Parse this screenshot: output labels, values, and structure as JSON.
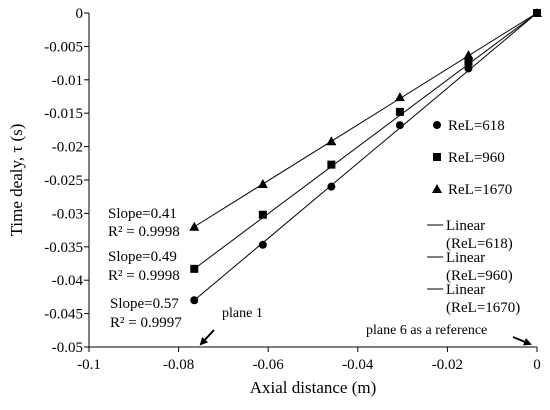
{
  "chart_data": {
    "type": "scatter",
    "xlabel": "Axial distance (m)",
    "ylabel": "Time dealy, τ (s)",
    "xlim": [
      -0.1,
      0
    ],
    "ylim": [
      -0.05,
      0
    ],
    "x_ticks": [
      "-0.1",
      "-0.08",
      "-0.06",
      "-0.04",
      "-0.02",
      "0"
    ],
    "y_ticks": [
      "0",
      "-0.005",
      "-0.01",
      "-0.015",
      "-0.02",
      "-0.025",
      "-0.03",
      "-0.035",
      "-0.04",
      "-0.045",
      "-0.05"
    ],
    "x_tick_values": [
      -0.1,
      -0.08,
      -0.06,
      -0.04,
      -0.02,
      0
    ],
    "y_tick_values": [
      0,
      -0.005,
      -0.01,
      -0.015,
      -0.02,
      -0.025,
      -0.03,
      -0.035,
      -0.04,
      -0.045,
      -0.05
    ],
    "grid": false,
    "legend_position": "right",
    "series": [
      {
        "name": "ReL=618",
        "marker": "circle",
        "x": [
          -0.0765,
          -0.0612,
          -0.0459,
          -0.0306,
          -0.0153,
          0
        ],
        "y": [
          -0.043,
          -0.0347,
          -0.026,
          -0.0168,
          -0.0083,
          0
        ],
        "fit_label": "Linear (ReL=618)",
        "slope_text": "Slope=0.57",
        "r2_text": "R² = 0.9997"
      },
      {
        "name": "ReL=960",
        "marker": "square",
        "x": [
          -0.0765,
          -0.0612,
          -0.0459,
          -0.0306,
          -0.0153,
          0
        ],
        "y": [
          -0.0383,
          -0.0302,
          -0.0227,
          -0.0148,
          -0.0073,
          0
        ],
        "fit_label": "Linear (ReL=960)",
        "slope_text": "Slope=0.49",
        "r2_text": "R² = 0.9998"
      },
      {
        "name": "ReL=1670",
        "marker": "triangle",
        "x": [
          -0.0765,
          -0.0612,
          -0.0459,
          -0.0306,
          -0.0153,
          0
        ],
        "y": [
          -0.032,
          -0.0256,
          -0.0192,
          -0.0126,
          -0.0063,
          0
        ],
        "fit_label": "Linear (ReL=1670)",
        "slope_text": "Slope=0.41",
        "r2_text": "R² = 0.9998"
      }
    ],
    "annotations": {
      "plane1": "plane 1",
      "plane6": "plane 6 as a reference"
    },
    "legend": {
      "markers": [
        "ReL=618",
        "ReL=960",
        "ReL=1670"
      ],
      "linear": [
        {
          "line1": "Linear",
          "line2": "(ReL=618)"
        },
        {
          "line1": "Linear",
          "line2": "(ReL=960)"
        },
        {
          "line1": "Linear",
          "line2": "(ReL=1670)"
        }
      ]
    }
  }
}
